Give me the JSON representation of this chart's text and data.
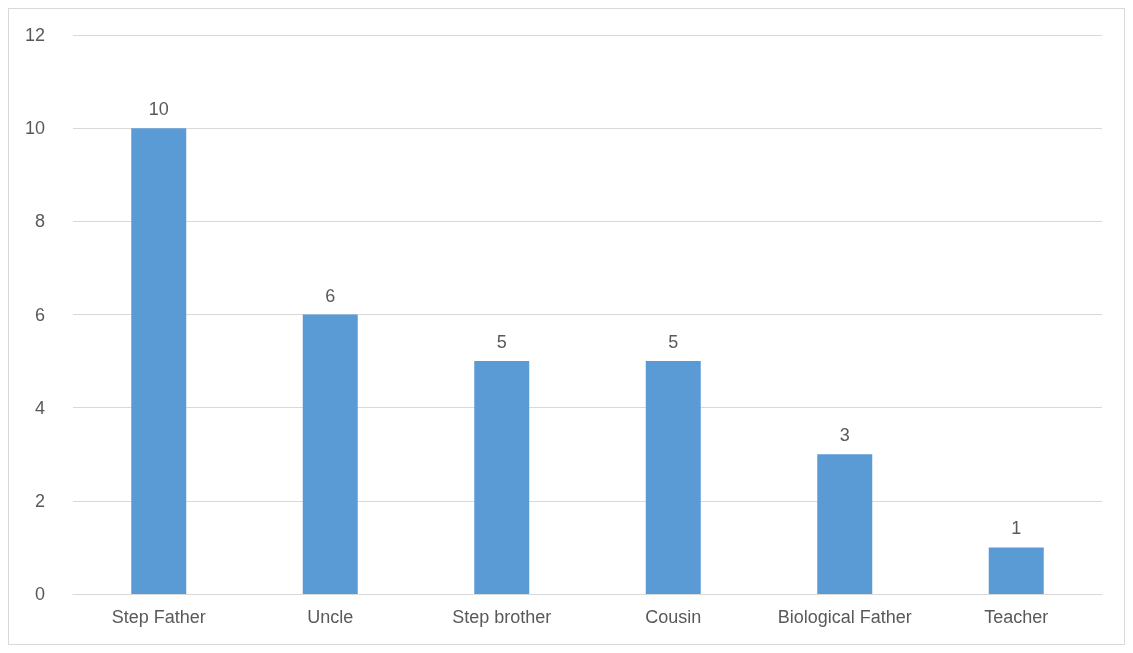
{
  "chart_data": {
    "type": "bar",
    "categories": [
      "Step Father",
      "Uncle",
      "Step brother",
      "Cousin",
      "Biological Father",
      "Teacher"
    ],
    "values": [
      10,
      6,
      5,
      5,
      3,
      1
    ],
    "color": "#5b9bd5",
    "ylim": [
      0,
      12
    ],
    "yticks": [
      0,
      2,
      4,
      6,
      8,
      10,
      12
    ],
    "grid": "y",
    "data_labels": true
  }
}
